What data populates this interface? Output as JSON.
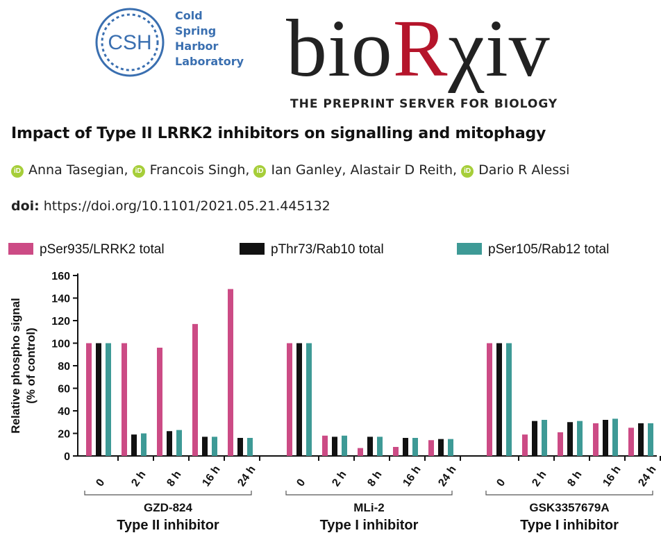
{
  "header": {
    "csh_lines": [
      "Cold",
      "Spring",
      "Harbor",
      "Laboratory"
    ],
    "csh_badge": "CSH",
    "biorxiv_prefix": "bio",
    "biorxiv_r": "R",
    "biorxiv_suffix": "χiv",
    "tagline": "THE PREPRINT SERVER FOR BIOLOGY"
  },
  "paper": {
    "title": "Impact of Type II LRRK2 inhibitors on signalling and mitophagy",
    "authors": [
      "Anna Tasegian,",
      "Francois Singh,",
      "Ian Ganley, Alastair D Reith,",
      "Dario R Alessi"
    ],
    "orcid_label": "iD",
    "doi_label": "doi:",
    "doi_value": "https://doi.org/10.1101/2021.05.21.445132"
  },
  "colors": {
    "pink": "#cc4b85",
    "black": "#111111",
    "teal": "#3e9a96",
    "orcid": "#a6ce39",
    "brand_red": "#b5152b"
  },
  "chart_data": {
    "type": "bar",
    "ylabel": "Relative phospho signal\n(% of control)",
    "ylim": [
      0,
      160
    ],
    "yticks": [
      0,
      20,
      40,
      60,
      80,
      100,
      120,
      140,
      160
    ],
    "timepoints": [
      "0",
      "2 h",
      "8 h",
      "16 h",
      "24 h"
    ],
    "legend": [
      "pSer935/LRRK2 total",
      "pThr73/Rab10 total",
      "pSer105/Rab12 total"
    ],
    "groups": [
      {
        "name": "GZD-824",
        "subtitle": "Type II inhibitor",
        "series": [
          {
            "name": "pSer935/LRRK2 total",
            "values": [
              100,
              100,
              96,
              117,
              148
            ]
          },
          {
            "name": "pThr73/Rab10 total",
            "values": [
              100,
              19,
              22,
              17,
              16
            ]
          },
          {
            "name": "pSer105/Rab12 total",
            "values": [
              100,
              20,
              23,
              17,
              16
            ]
          }
        ]
      },
      {
        "name": "MLi-2",
        "subtitle": "Type I inhibitor",
        "series": [
          {
            "name": "pSer935/LRRK2 total",
            "values": [
              100,
              18,
              7,
              8,
              14
            ]
          },
          {
            "name": "pThr73/Rab10 total",
            "values": [
              100,
              17,
              17,
              16,
              15
            ]
          },
          {
            "name": "pSer105/Rab12 total",
            "values": [
              100,
              18,
              17,
              16,
              15
            ]
          }
        ]
      },
      {
        "name": "GSK3357679A",
        "subtitle": "Type I inhibitor",
        "series": [
          {
            "name": "pSer935/LRRK2 total",
            "values": [
              100,
              19,
              21,
              29,
              25
            ]
          },
          {
            "name": "pThr73/Rab10 total",
            "values": [
              100,
              31,
              30,
              32,
              29
            ]
          },
          {
            "name": "pSer105/Rab12 total",
            "values": [
              100,
              32,
              31,
              33,
              29
            ]
          }
        ]
      }
    ]
  }
}
